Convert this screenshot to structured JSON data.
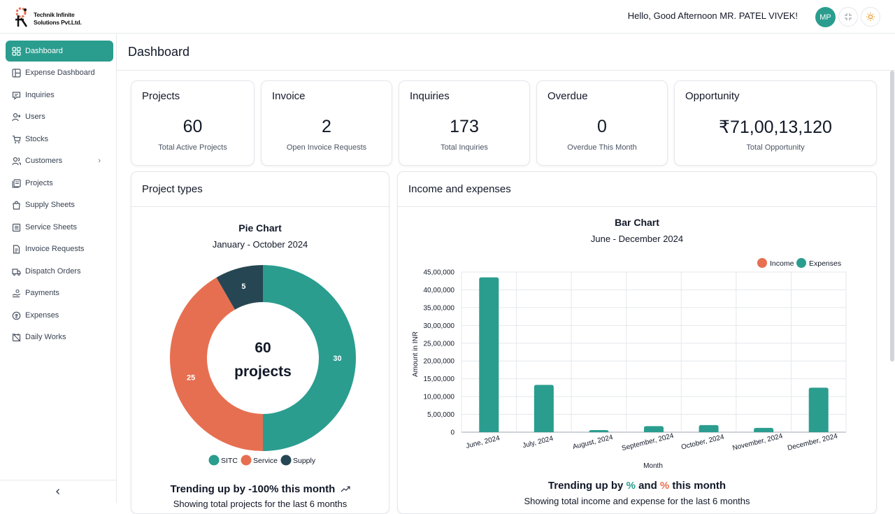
{
  "header": {
    "company_line1": "Technik Infinite",
    "company_line2": "Solutions Pvt.Ltd.",
    "greeting": "Hello, Good Afternoon MR. PATEL VIVEK!",
    "avatar_initials": "MP",
    "icons": [
      "shrink-icon",
      "sun-icon"
    ]
  },
  "sidebar": {
    "items": [
      {
        "label": "Dashboard",
        "icon": "grid-icon",
        "active": true
      },
      {
        "label": "Expense Dashboard",
        "icon": "layout-icon"
      },
      {
        "label": "Inquiries",
        "icon": "message-icon"
      },
      {
        "label": "Users",
        "icon": "user-plus-icon"
      },
      {
        "label": "Stocks",
        "icon": "cart-icon"
      },
      {
        "label": "Customers",
        "icon": "users-icon",
        "has_submenu": true
      },
      {
        "label": "Projects",
        "icon": "folder-icon"
      },
      {
        "label": "Supply Sheets",
        "icon": "bag-icon"
      },
      {
        "label": "Service Sheets",
        "icon": "list-icon"
      },
      {
        "label": "Invoice Requests",
        "icon": "file-icon"
      },
      {
        "label": "Dispatch Orders",
        "icon": "truck-icon"
      },
      {
        "label": "Payments",
        "icon": "hand-coins-icon"
      },
      {
        "label": "Expenses",
        "icon": "coin-icon"
      },
      {
        "label": "Daily Works",
        "icon": "calendar-off-icon"
      }
    ],
    "collapse_icon": "chevron-left-icon",
    "submenu_chevron": "›"
  },
  "page": {
    "title": "Dashboard"
  },
  "stats": [
    {
      "label": "Projects",
      "value": "60",
      "sub": "Total Active Projects"
    },
    {
      "label": "Invoice",
      "value": "2",
      "sub": "Open Invoice Requests"
    },
    {
      "label": "Inquiries",
      "value": "173",
      "sub": "Total Inquiries"
    },
    {
      "label": "Overdue",
      "value": "0",
      "sub": "Overdue This Month"
    },
    {
      "label": "Opportunity",
      "value": "₹71,00,13,120",
      "sub": "Total Opportunity"
    }
  ],
  "project_types": {
    "panel_title": "Project types",
    "trend_text": "Trending up by -100% this month",
    "trend_sub": "Showing total projects for the last 6 months",
    "trend_icon": "trending-up-icon"
  },
  "income_expenses": {
    "panel_title": "Income and expenses",
    "trend_prefix": "Trending up by ",
    "trend_pct1": "%",
    "trend_mid": " and ",
    "trend_pct2": "%",
    "trend_suffix": " this month",
    "trend_sub": "Showing total income and expense for the last 6 months"
  },
  "colors": {
    "teal": "#2a9d8f",
    "coral": "#e76f51",
    "navy": "#264653"
  },
  "chart_data": [
    {
      "type": "pie",
      "title": "Pie Chart",
      "subtitle": "January - October 2024",
      "center_value": "60",
      "center_label": "projects",
      "categories": [
        "SITC",
        "Service",
        "Supply"
      ],
      "values": [
        30,
        25,
        5
      ],
      "colors": [
        "#2a9d8f",
        "#e76f51",
        "#264653"
      ],
      "legend_position": "bottom"
    },
    {
      "type": "bar",
      "title": "Bar Chart",
      "subtitle": "June - December 2024",
      "xlabel": "Month",
      "ylabel": "Amount in INR",
      "categories": [
        "June, 2024",
        "July, 2024",
        "August, 2024",
        "September, 2024",
        "October, 2024",
        "November, 2024",
        "December, 2024"
      ],
      "series": [
        {
          "name": "Income",
          "color": "#e76f51",
          "values": [
            0,
            0,
            0,
            0,
            0,
            0,
            0
          ]
        },
        {
          "name": "Expenses",
          "color": "#2a9d8f",
          "values": [
            4350000,
            1330000,
            60000,
            170000,
            200000,
            120000,
            1250000
          ]
        }
      ],
      "ylim": [
        0,
        4500000
      ],
      "yticks": [
        "0",
        "5,00,000",
        "10,00,000",
        "15,00,000",
        "20,00,000",
        "25,00,000",
        "30,00,000",
        "35,00,000",
        "40,00,000",
        "45,00,000"
      ],
      "grid": true,
      "legend_position": "top-right"
    }
  ]
}
